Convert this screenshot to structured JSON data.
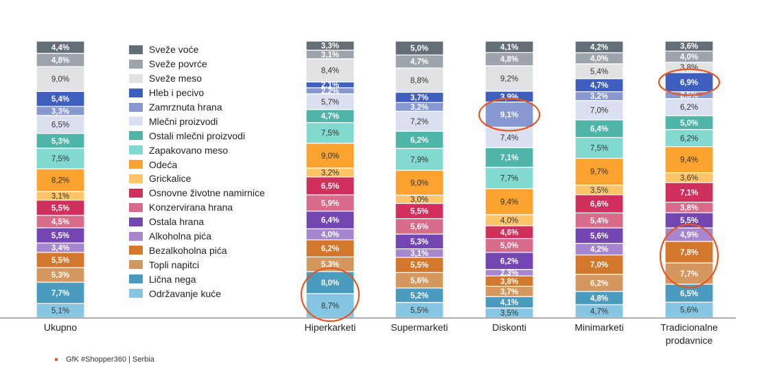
{
  "chart_data": {
    "type": "bar",
    "stacked": true,
    "title": "",
    "xlabel": "",
    "ylabel": "",
    "ylim": [
      0,
      100
    ],
    "value_format": "percent-comma",
    "categories": [
      "Ukupno",
      "Hiperkarketi",
      "Supermarketi",
      "Diskonti",
      "Minimarketi",
      "Tradicionalne prodavnice"
    ],
    "category_lines": [
      [
        "Ukupno"
      ],
      [
        "Hiperkarketi"
      ],
      [
        "Supermarketi"
      ],
      [
        "Diskonti"
      ],
      [
        "Minimarketi"
      ],
      [
        "Tradicionalne",
        "prodavnice"
      ]
    ],
    "series": [
      {
        "name": "Sveže voće",
        "color": "#646e76",
        "label_color": "#ffffff",
        "values": [
          4.4,
          3.3,
          5.0,
          4.1,
          4.2,
          3.6
        ],
        "labels": [
          "4,4%",
          "3,3%",
          "5,0%",
          "4,1%",
          "4,2%",
          "3,6%"
        ]
      },
      {
        "name": "Sveže povrće",
        "color": "#9ea4ab",
        "label_color": "#ffffff",
        "values": [
          4.8,
          3.1,
          4.7,
          4.8,
          4.0,
          4.0
        ],
        "labels": [
          "4,8%",
          "3,1%",
          "4,7%",
          "4,8%",
          "4,0%",
          "4,0%"
        ]
      },
      {
        "name": "Sveže meso",
        "color": "#e1e2e4",
        "label_color": "#333333",
        "values": [
          9.0,
          8.4,
          8.8,
          9.2,
          5.4,
          3.8
        ],
        "labels": [
          "9,0%",
          "8,4%",
          "8,8%",
          "9,2%",
          "5,4%",
          "3,8%"
        ]
      },
      {
        "name": "Hleb i pecivo",
        "color": "#3f5fbf",
        "label_color": "#ffffff",
        "values": [
          5.4,
          2.1,
          3.7,
          3.9,
          4.7,
          6.9
        ],
        "labels": [
          "5,4%",
          "2,1%",
          "3,7%",
          "3,9%",
          "4,7%",
          "6,9%"
        ]
      },
      {
        "name": "Zamrznuta hrana",
        "color": "#8698cf",
        "label_color": "#ffffff",
        "values": [
          3.3,
          2.2,
          3.2,
          9.1,
          3.2,
          2.5
        ],
        "labels": [
          "3,3%",
          "2,2%",
          "3,2%",
          "9,1%",
          "3,2%",
          "2,5%"
        ]
      },
      {
        "name": "Mlečni proizvodi",
        "color": "#dbe0f1",
        "label_color": "#333333",
        "values": [
          6.5,
          5.7,
          7.2,
          7.4,
          7.0,
          6.2
        ],
        "labels": [
          "6,5%",
          "5,7%",
          "7,2%",
          "7,4%",
          "7,0%",
          "6,2%"
        ]
      },
      {
        "name": "Ostali mlečni proizvodi",
        "color": "#4fb5a9",
        "label_color": "#ffffff",
        "values": [
          5.3,
          4.7,
          6.2,
          7.1,
          6.4,
          5.0
        ],
        "labels": [
          "5,3%",
          "4,7%",
          "6,2%",
          "7,1%",
          "6,4%",
          "5,0%"
        ]
      },
      {
        "name": "Zapakovano meso",
        "color": "#82d9d0",
        "label_color": "#333333",
        "values": [
          7.5,
          7.5,
          7.9,
          7.7,
          7.5,
          6.2
        ],
        "labels": [
          "7,5%",
          "7,5%",
          "7,9%",
          "7,7%",
          "7,5%",
          "6,2%"
        ]
      },
      {
        "name": "Odeća",
        "color": "#fba22f",
        "label_color": "#333333",
        "values": [
          8.2,
          9.0,
          9.0,
          9.4,
          9.7,
          9.4
        ],
        "labels": [
          "8,2%",
          "9,0%",
          "9,0%",
          "9,4%",
          "9,7%",
          "9,4%"
        ]
      },
      {
        "name": "Grickalice",
        "color": "#fdc46a",
        "label_color": "#333333",
        "values": [
          3.1,
          3.2,
          3.0,
          4.0,
          3.5,
          3.6
        ],
        "labels": [
          "3,1%",
          "3,2%",
          "3,0%",
          "4,0%",
          "3,5%",
          "3,6%"
        ]
      },
      {
        "name": "Osnovne životne namirnice",
        "color": "#d1305d",
        "label_color": "#ffffff",
        "values": [
          5.5,
          6.5,
          5.5,
          4.6,
          6.6,
          7.1
        ],
        "labels": [
          "5,5%",
          "6,5%",
          "5,5%",
          "4,6%",
          "6,6%",
          "7,1%"
        ]
      },
      {
        "name": "Konzervirana hrana",
        "color": "#d86a8a",
        "label_color": "#ffffff",
        "values": [
          4.5,
          5.9,
          5.6,
          5.0,
          5.4,
          3.8
        ],
        "labels": [
          "4,5%",
          "5,9%",
          "5,6%",
          "5,0%",
          "5,4%",
          "3,8%"
        ]
      },
      {
        "name": "Ostala hrana",
        "color": "#7446b2",
        "label_color": "#ffffff",
        "values": [
          5.5,
          6.4,
          5.3,
          6.2,
          5.6,
          5.5
        ],
        "labels": [
          "5,5%",
          "6,4%",
          "5,3%",
          "6,2%",
          "5,6%",
          "5,5%"
        ]
      },
      {
        "name": "Alkoholna pića",
        "color": "#a687cf",
        "label_color": "#ffffff",
        "values": [
          3.4,
          4.0,
          3.1,
          2.3,
          4.2,
          4.9
        ],
        "labels": [
          "3,4%",
          "4,0%",
          "3,1%",
          "2,3%",
          "4,2%",
          "4,9%"
        ]
      },
      {
        "name": "Bezalkoholna pića",
        "color": "#d2772c",
        "label_color": "#ffffff",
        "values": [
          5.5,
          6.2,
          5.5,
          3.8,
          7.0,
          7.8
        ],
        "labels": [
          "5,5%",
          "6,2%",
          "5,5%",
          "3,8%",
          "7,0%",
          "7,8%"
        ]
      },
      {
        "name": "Topli napitci",
        "color": "#d4975e",
        "label_color": "#ffffff",
        "values": [
          5.3,
          5.3,
          5.6,
          3.7,
          6.2,
          7.7
        ],
        "labels": [
          "5,3%",
          "5,3%",
          "5,6%",
          "3,7%",
          "6,2%",
          "7,7%"
        ]
      },
      {
        "name": "Lična nega",
        "color": "#4a9bbd",
        "label_color": "#ffffff",
        "values": [
          7.7,
          8.0,
          5.2,
          4.1,
          4.8,
          6.5
        ],
        "labels": [
          "7,7%",
          "8,0%",
          "5,2%",
          "4,1%",
          "4,8%",
          "6,5%"
        ]
      },
      {
        "name": "Održavanje kuće",
        "color": "#86c6e2",
        "label_color": "#333333",
        "values": [
          5.1,
          8.7,
          5.5,
          3.5,
          4.7,
          5.6
        ],
        "labels": [
          "5,1%",
          "8,7%",
          "5,5%",
          "3,5%",
          "4,7%",
          "5,6%"
        ]
      }
    ],
    "highlights": [
      {
        "category": "Hiperkarketi",
        "series": [
          "Lična nega",
          "Održavanje kuće"
        ]
      },
      {
        "category": "Diskonti",
        "series": [
          "Zamrznuta hrana"
        ]
      },
      {
        "category": "Tradicionalne prodavnice",
        "series": [
          "Hleb i pecivo"
        ]
      },
      {
        "category": "Tradicionalne prodavnice",
        "series": [
          "Alkoholna pića",
          "Bezalkoholna pića",
          "Topli napitci"
        ]
      }
    ],
    "highlight_color": "#e8541e",
    "legend_position": "left-inside",
    "grid": false
  },
  "footer": {
    "source": "GfK #Shopper360 | Serbia",
    "bullet_color": "#e8541e"
  }
}
